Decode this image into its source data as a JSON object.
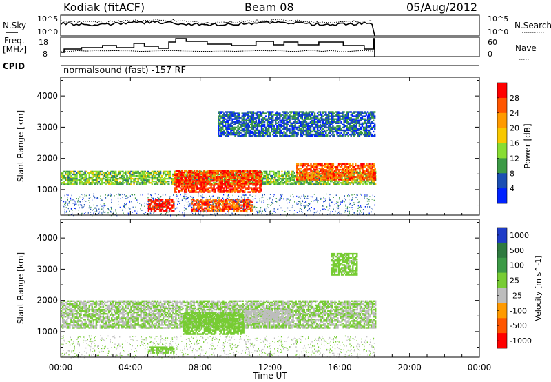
{
  "header": {
    "station": "Kodiak (fitACF)",
    "beam": "Beam 08",
    "date": "05/Aug/2012"
  },
  "sky_panel": {
    "left_label": "N.Sky",
    "left_ticks": [
      "10^5",
      "10^0"
    ],
    "right_label": "N.Search",
    "right_ticks": [
      "10^5",
      "10^0"
    ]
  },
  "freq_panel": {
    "left_label_1": "Freq.",
    "left_label_2": "[MHz]",
    "left_ticks": [
      "18",
      "8"
    ],
    "right_label": "Nave",
    "right_ticks": [
      "60",
      "0"
    ]
  },
  "cpid": {
    "label": "CPID",
    "program": "normalsound (fast) -157 RF"
  },
  "power_panel": {
    "ylabel": "Slant Range [km]",
    "yticks": [
      "4000",
      "3000",
      "2000",
      "1000"
    ],
    "colorbar_label": "Power [dB]",
    "colorbar_ticks": [
      "28",
      "24",
      "20",
      "16",
      "12",
      "8",
      "4"
    ],
    "colors": [
      "#ff0000",
      "#ff5500",
      "#ff9a00",
      "#f8c800",
      "#88dd33",
      "#3c9a46",
      "#1b4fb3",
      "#0022ff"
    ]
  },
  "velocity_panel": {
    "ylabel": "Slant Range [km]",
    "yticks": [
      "4000",
      "3000",
      "2000",
      "1000"
    ],
    "colorbar_label": "Velocity [m s^-1]",
    "colorbar_ticks": [
      "1000",
      "500",
      "100",
      "25",
      "-25",
      "-100",
      "-500",
      "-1000"
    ],
    "colors": [
      "#1f3cc8",
      "#2f7a3f",
      "#3c9a46",
      "#77cc33",
      "#bdbdbd",
      "#ff9a00",
      "#ff5500",
      "#ff0000"
    ]
  },
  "time_axis": {
    "xlabel": "Time UT",
    "ticks": [
      "00:00",
      "04:00",
      "08:00",
      "12:00",
      "16:00",
      "20:00",
      "00:00"
    ]
  },
  "chart_data": {
    "type": "heatmap",
    "title": "Kodiak (fitACF) Beam 08 05/Aug/2012",
    "xlabel": "Time UT",
    "ylabel": "Slant Range [km]",
    "xlim_hours_ut": [
      0,
      24
    ],
    "ylim_km": [
      180,
      4600
    ],
    "data_end_hour_ut": 18,
    "panels": [
      {
        "name": "Power [dB]",
        "scale": [
          0,
          30
        ],
        "regions": [
          {
            "t0": 0.0,
            "t1": 18.0,
            "r0": 1150,
            "r1": 1600,
            "value": 12
          },
          {
            "t0": 5.0,
            "t1": 6.5,
            "r0": 300,
            "r1": 700,
            "value": 28
          },
          {
            "t0": 6.5,
            "t1": 11.5,
            "r0": 900,
            "r1": 1600,
            "value": 26
          },
          {
            "t0": 7.5,
            "t1": 11.0,
            "r0": 300,
            "r1": 700,
            "value": 24
          },
          {
            "t0": 13.5,
            "t1": 18.0,
            "r0": 1300,
            "r1": 1800,
            "value": 24
          },
          {
            "t0": 9.0,
            "t1": 18.0,
            "r0": 2700,
            "r1": 3500,
            "value": 6
          }
        ]
      },
      {
        "name": "Velocity [m s-1]",
        "scale": [
          -1000,
          1000
        ],
        "regions": [
          {
            "t0": 0.0,
            "t1": 18.0,
            "r0": 1100,
            "r1": 2000,
            "value": 0
          },
          {
            "t0": 7.0,
            "t1": 10.5,
            "r0": 900,
            "r1": 1600,
            "value": 150
          },
          {
            "t0": 10.5,
            "t1": 13.0,
            "r0": 1300,
            "r1": 1700,
            "value": -150
          },
          {
            "t0": 5.0,
            "t1": 6.5,
            "r0": 300,
            "r1": 500,
            "value": 80
          },
          {
            "t0": 15.5,
            "t1": 17.0,
            "r0": 2800,
            "r1": 3500,
            "value": 70
          }
        ]
      }
    ]
  }
}
